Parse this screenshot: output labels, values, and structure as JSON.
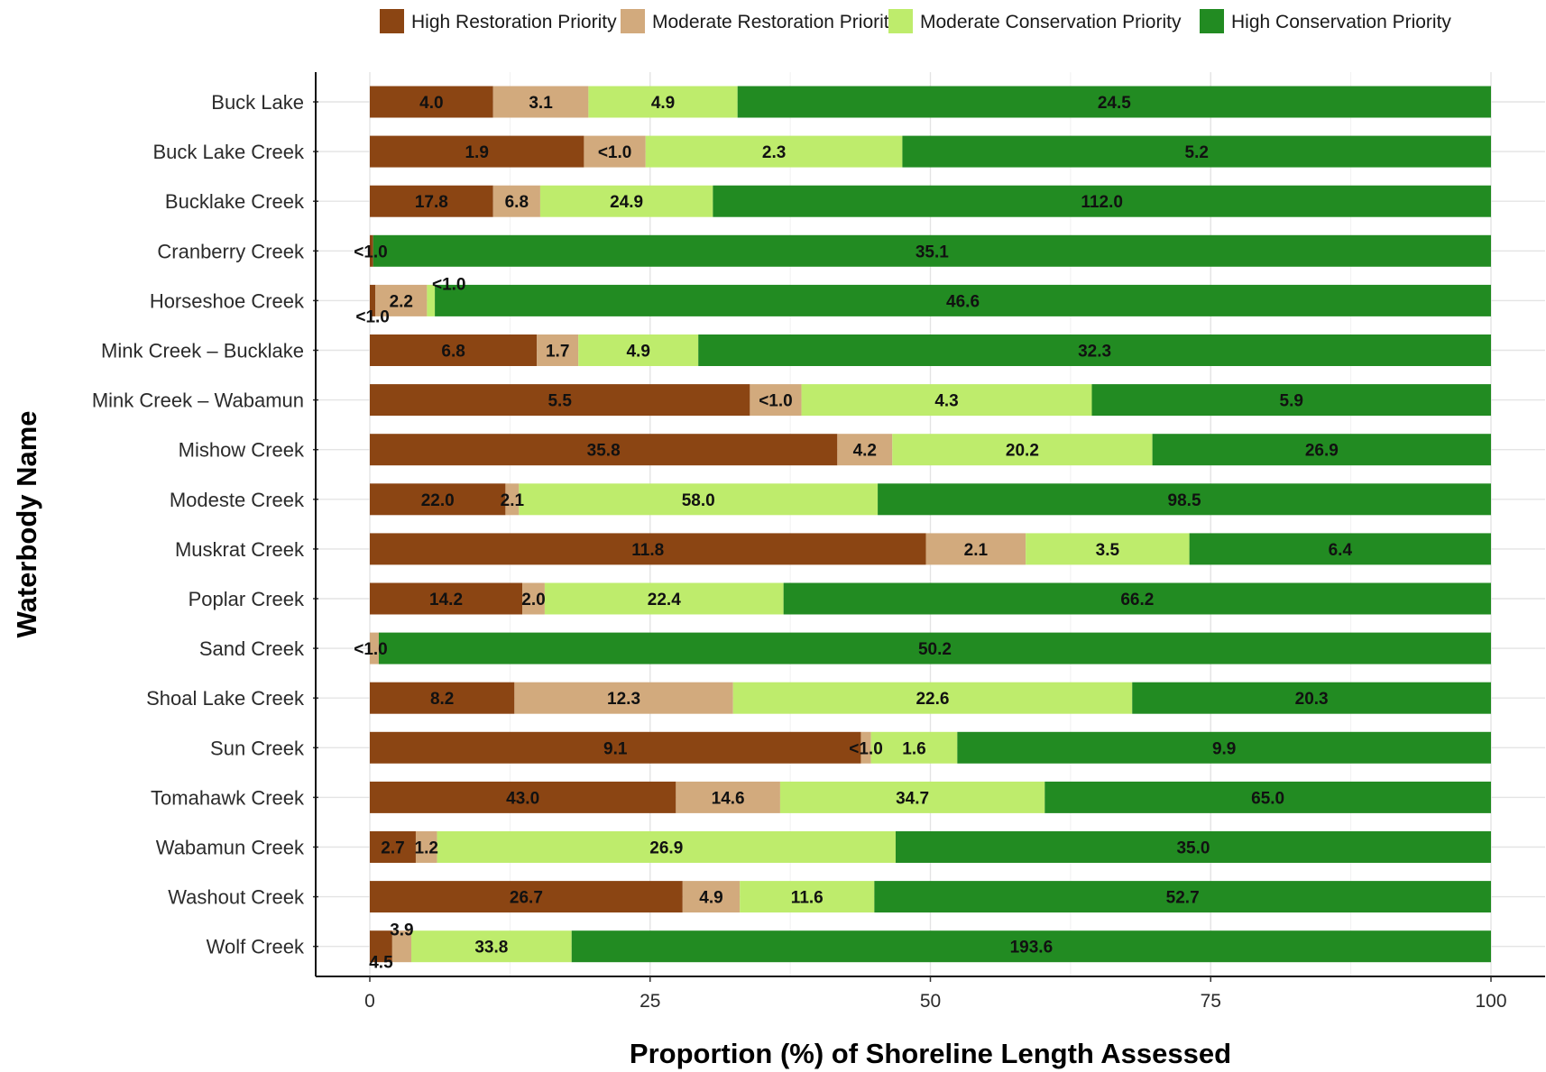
{
  "chart_data": {
    "type": "bar",
    "orientation": "horizontal",
    "stacked": true,
    "xlabel": "Proportion (%) of Shoreline Length Assessed",
    "ylabel": "Waterbody Name",
    "xlim": [
      0,
      100
    ],
    "xticks": [
      0,
      25,
      50,
      75,
      100
    ],
    "grid": true,
    "legend_position": "top",
    "categories": [
      "Buck Lake",
      "Buck Lake Creek",
      "Bucklake Creek",
      "Cranberry Creek",
      "Horseshoe Creek",
      "Mink Creek – Bucklake",
      "Mink Creek – Wabamun",
      "Mishow Creek",
      "Modeste Creek",
      "Muskrat Creek",
      "Poplar Creek",
      "Sand Creek",
      "Shoal Lake Creek",
      "Sun Creek",
      "Tomahawk Creek",
      "Wabamun Creek",
      "Washout Creek",
      "Wolf Creek"
    ],
    "series": [
      {
        "name": "High Restoration Priority",
        "color": "#8B4513",
        "values": [
          11.0,
          19.1,
          11.0,
          0.3,
          0.5,
          14.9,
          33.9,
          41.7,
          12.1,
          49.6,
          13.6,
          0,
          12.9,
          43.8,
          27.3,
          4.1,
          27.9,
          2.0
        ],
        "labels": [
          "4.0",
          "1.9",
          "17.8",
          "<1.0",
          "<1.0",
          "6.8",
          "5.5",
          "35.8",
          "22.0",
          "11.8",
          "14.2",
          "",
          "8.2",
          "9.1",
          "43.0",
          "2.7",
          "26.7",
          "4.5"
        ]
      },
      {
        "name": "Moderate Restoration Priority",
        "color": "#D2AA7D",
        "values": [
          8.5,
          5.5,
          4.2,
          0,
          4.6,
          3.7,
          4.6,
          4.9,
          1.2,
          8.9,
          2.0,
          0.8,
          19.5,
          0.9,
          9.3,
          1.9,
          5.1,
          1.7
        ],
        "labels": [
          "3.1",
          "<1.0",
          "6.8",
          "",
          "2.2",
          "1.7",
          "<1.0",
          "4.2",
          "2.1",
          "2.1",
          "2.0",
          "<1.0",
          "12.3",
          "<1.0",
          "14.6",
          "1.2",
          "4.9",
          "3.9"
        ]
      },
      {
        "name": "Moderate Conservation Priority",
        "color": "#BEEC6C",
        "values": [
          13.3,
          22.9,
          15.4,
          0,
          0.7,
          10.7,
          25.9,
          23.2,
          32.0,
          14.6,
          21.3,
          0,
          35.6,
          7.7,
          23.6,
          40.9,
          12.0,
          14.3
        ],
        "labels": [
          "4.9",
          "2.3",
          "24.9",
          "",
          "<1.0",
          "4.9",
          "4.3",
          "20.2",
          "58.0",
          "3.5",
          "22.4",
          "",
          "22.6",
          "1.6",
          "34.7",
          "26.9",
          "11.6",
          "33.8"
        ]
      },
      {
        "name": "High Conservation Priority",
        "color": "#228B22",
        "values": [
          67.2,
          52.5,
          69.4,
          99.7,
          94.2,
          70.7,
          35.6,
          30.2,
          54.7,
          26.9,
          63.1,
          99.2,
          32.0,
          47.6,
          39.8,
          53.1,
          55.0,
          82.0
        ],
        "labels": [
          "24.5",
          "5.2",
          "112.0",
          "35.1",
          "46.6",
          "32.3",
          "5.9",
          "26.9",
          "98.5",
          "6.4",
          "66.2",
          "50.2",
          "20.3",
          "9.9",
          "65.0",
          "35.0",
          "52.7",
          "193.6"
        ]
      }
    ]
  }
}
